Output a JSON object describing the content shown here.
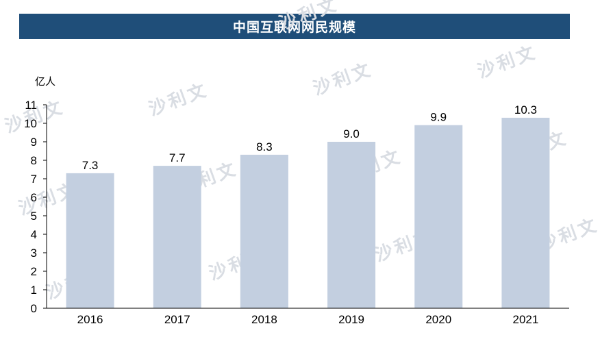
{
  "title": "中国互联网网民规模",
  "unit": "亿人",
  "watermark": "沙利文",
  "colors": {
    "title_bg": "#1f4e79",
    "bar": "#c3cfe0",
    "axis": "#000000"
  },
  "chart_data": {
    "type": "bar",
    "categories": [
      "2016",
      "2017",
      "2018",
      "2019",
      "2020",
      "2021"
    ],
    "values": [
      7.3,
      7.7,
      8.3,
      9.0,
      9.9,
      10.3
    ],
    "value_labels": [
      "7.3",
      "7.7",
      "8.3",
      "9.0",
      "9.9",
      "10.3"
    ],
    "ylim": [
      0,
      11
    ],
    "yticks": [
      "0",
      "1",
      "2",
      "3",
      "4",
      "5",
      "6",
      "7",
      "8",
      "9",
      "10",
      "11"
    ],
    "grid": false
  }
}
